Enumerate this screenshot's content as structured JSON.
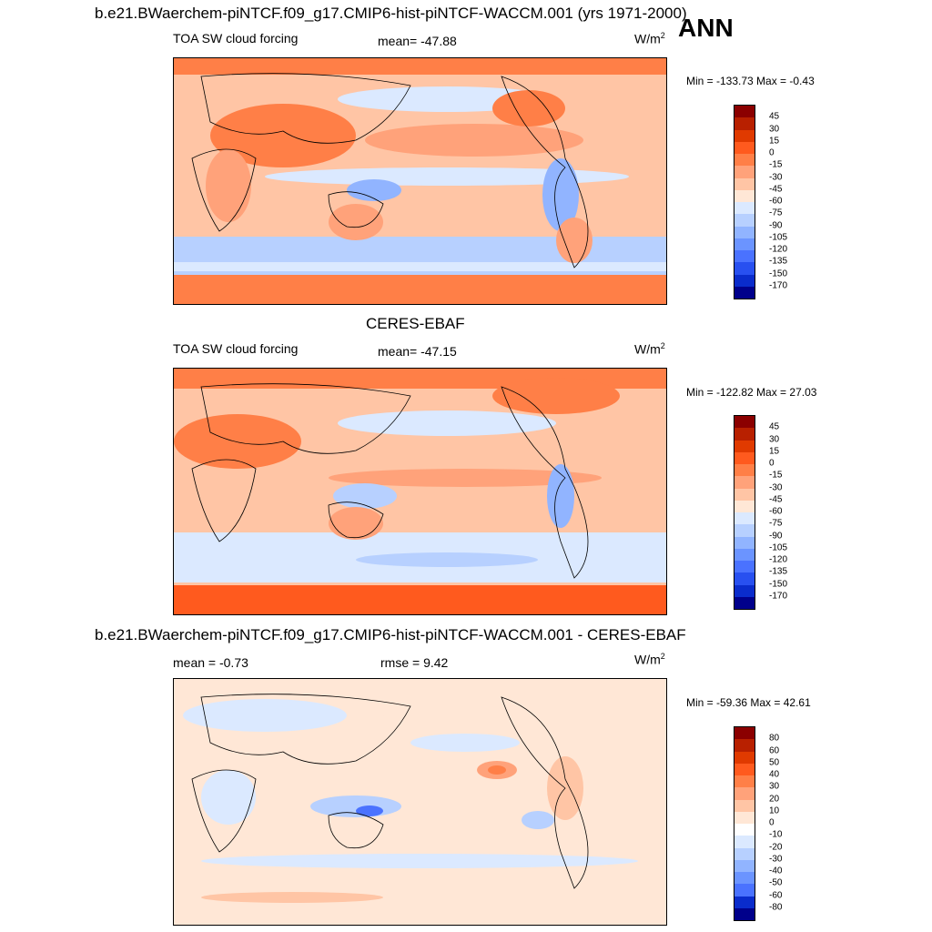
{
  "top_title": "b.e21.BWaerchem-piNTCF.f09_g17.CMIP6-hist-piNTCF-WACCM.001 (yrs 1971-2000)",
  "season": "ANN",
  "panels": [
    {
      "title": "",
      "left_label": "TOA SW cloud forcing",
      "center_label": "mean= -47.88",
      "units": "W/m",
      "units_sup": "2",
      "minmax": "Min = -133.73 Max =  -0.43",
      "colorbar": {
        "labels": [
          "45",
          "30",
          "15",
          "0",
          "-15",
          "-30",
          "-45",
          "-60",
          "-75",
          "-90",
          "-105",
          "-120",
          "-135",
          "-150",
          "-170"
        ],
        "colors": [
          "#8b0000",
          "#b82000",
          "#e03a00",
          "#ff5a1e",
          "#ff7f47",
          "#ffa27a",
          "#ffc5a5",
          "#ffe7d6",
          "#dbe9ff",
          "#b7d0ff",
          "#91b4ff",
          "#6b94ff",
          "#4a72ff",
          "#2850f0",
          "#0a2ccc",
          "#00008b"
        ]
      }
    },
    {
      "title": "CERES-EBAF",
      "left_label": "TOA SW cloud forcing",
      "center_label": "mean= -47.15",
      "units": "W/m",
      "units_sup": "2",
      "minmax": "Min = -122.82 Max =  27.03",
      "colorbar": {
        "labels": [
          "45",
          "30",
          "15",
          "0",
          "-15",
          "-30",
          "-45",
          "-60",
          "-75",
          "-90",
          "-105",
          "-120",
          "-135",
          "-150",
          "-170"
        ],
        "colors": [
          "#8b0000",
          "#b82000",
          "#e03a00",
          "#ff5a1e",
          "#ff7f47",
          "#ffa27a",
          "#ffc5a5",
          "#ffe7d6",
          "#dbe9ff",
          "#b7d0ff",
          "#91b4ff",
          "#6b94ff",
          "#4a72ff",
          "#2850f0",
          "#0a2ccc",
          "#00008b"
        ]
      }
    },
    {
      "title": "b.e21.BWaerchem-piNTCF.f09_g17.CMIP6-hist-piNTCF-WACCM.001 - CERES-EBAF",
      "left_label": "mean =  -0.73",
      "center_label": "rmse =   9.42",
      "units": "W/m",
      "units_sup": "2",
      "minmax": "Min = -59.36 Max =  42.61",
      "colorbar": {
        "labels": [
          "80",
          "60",
          "50",
          "40",
          "30",
          "20",
          "10",
          "0",
          "-10",
          "-20",
          "-30",
          "-40",
          "-50",
          "-60",
          "-80"
        ],
        "colors": [
          "#8b0000",
          "#b82000",
          "#e03a00",
          "#ff5a1e",
          "#ff7f47",
          "#ffa27a",
          "#ffc5a5",
          "#ffe7d6",
          "#ffffff",
          "#dbe9ff",
          "#b7d0ff",
          "#91b4ff",
          "#6b94ff",
          "#4a72ff",
          "#0a2ccc",
          "#00008b"
        ]
      }
    }
  ]
}
